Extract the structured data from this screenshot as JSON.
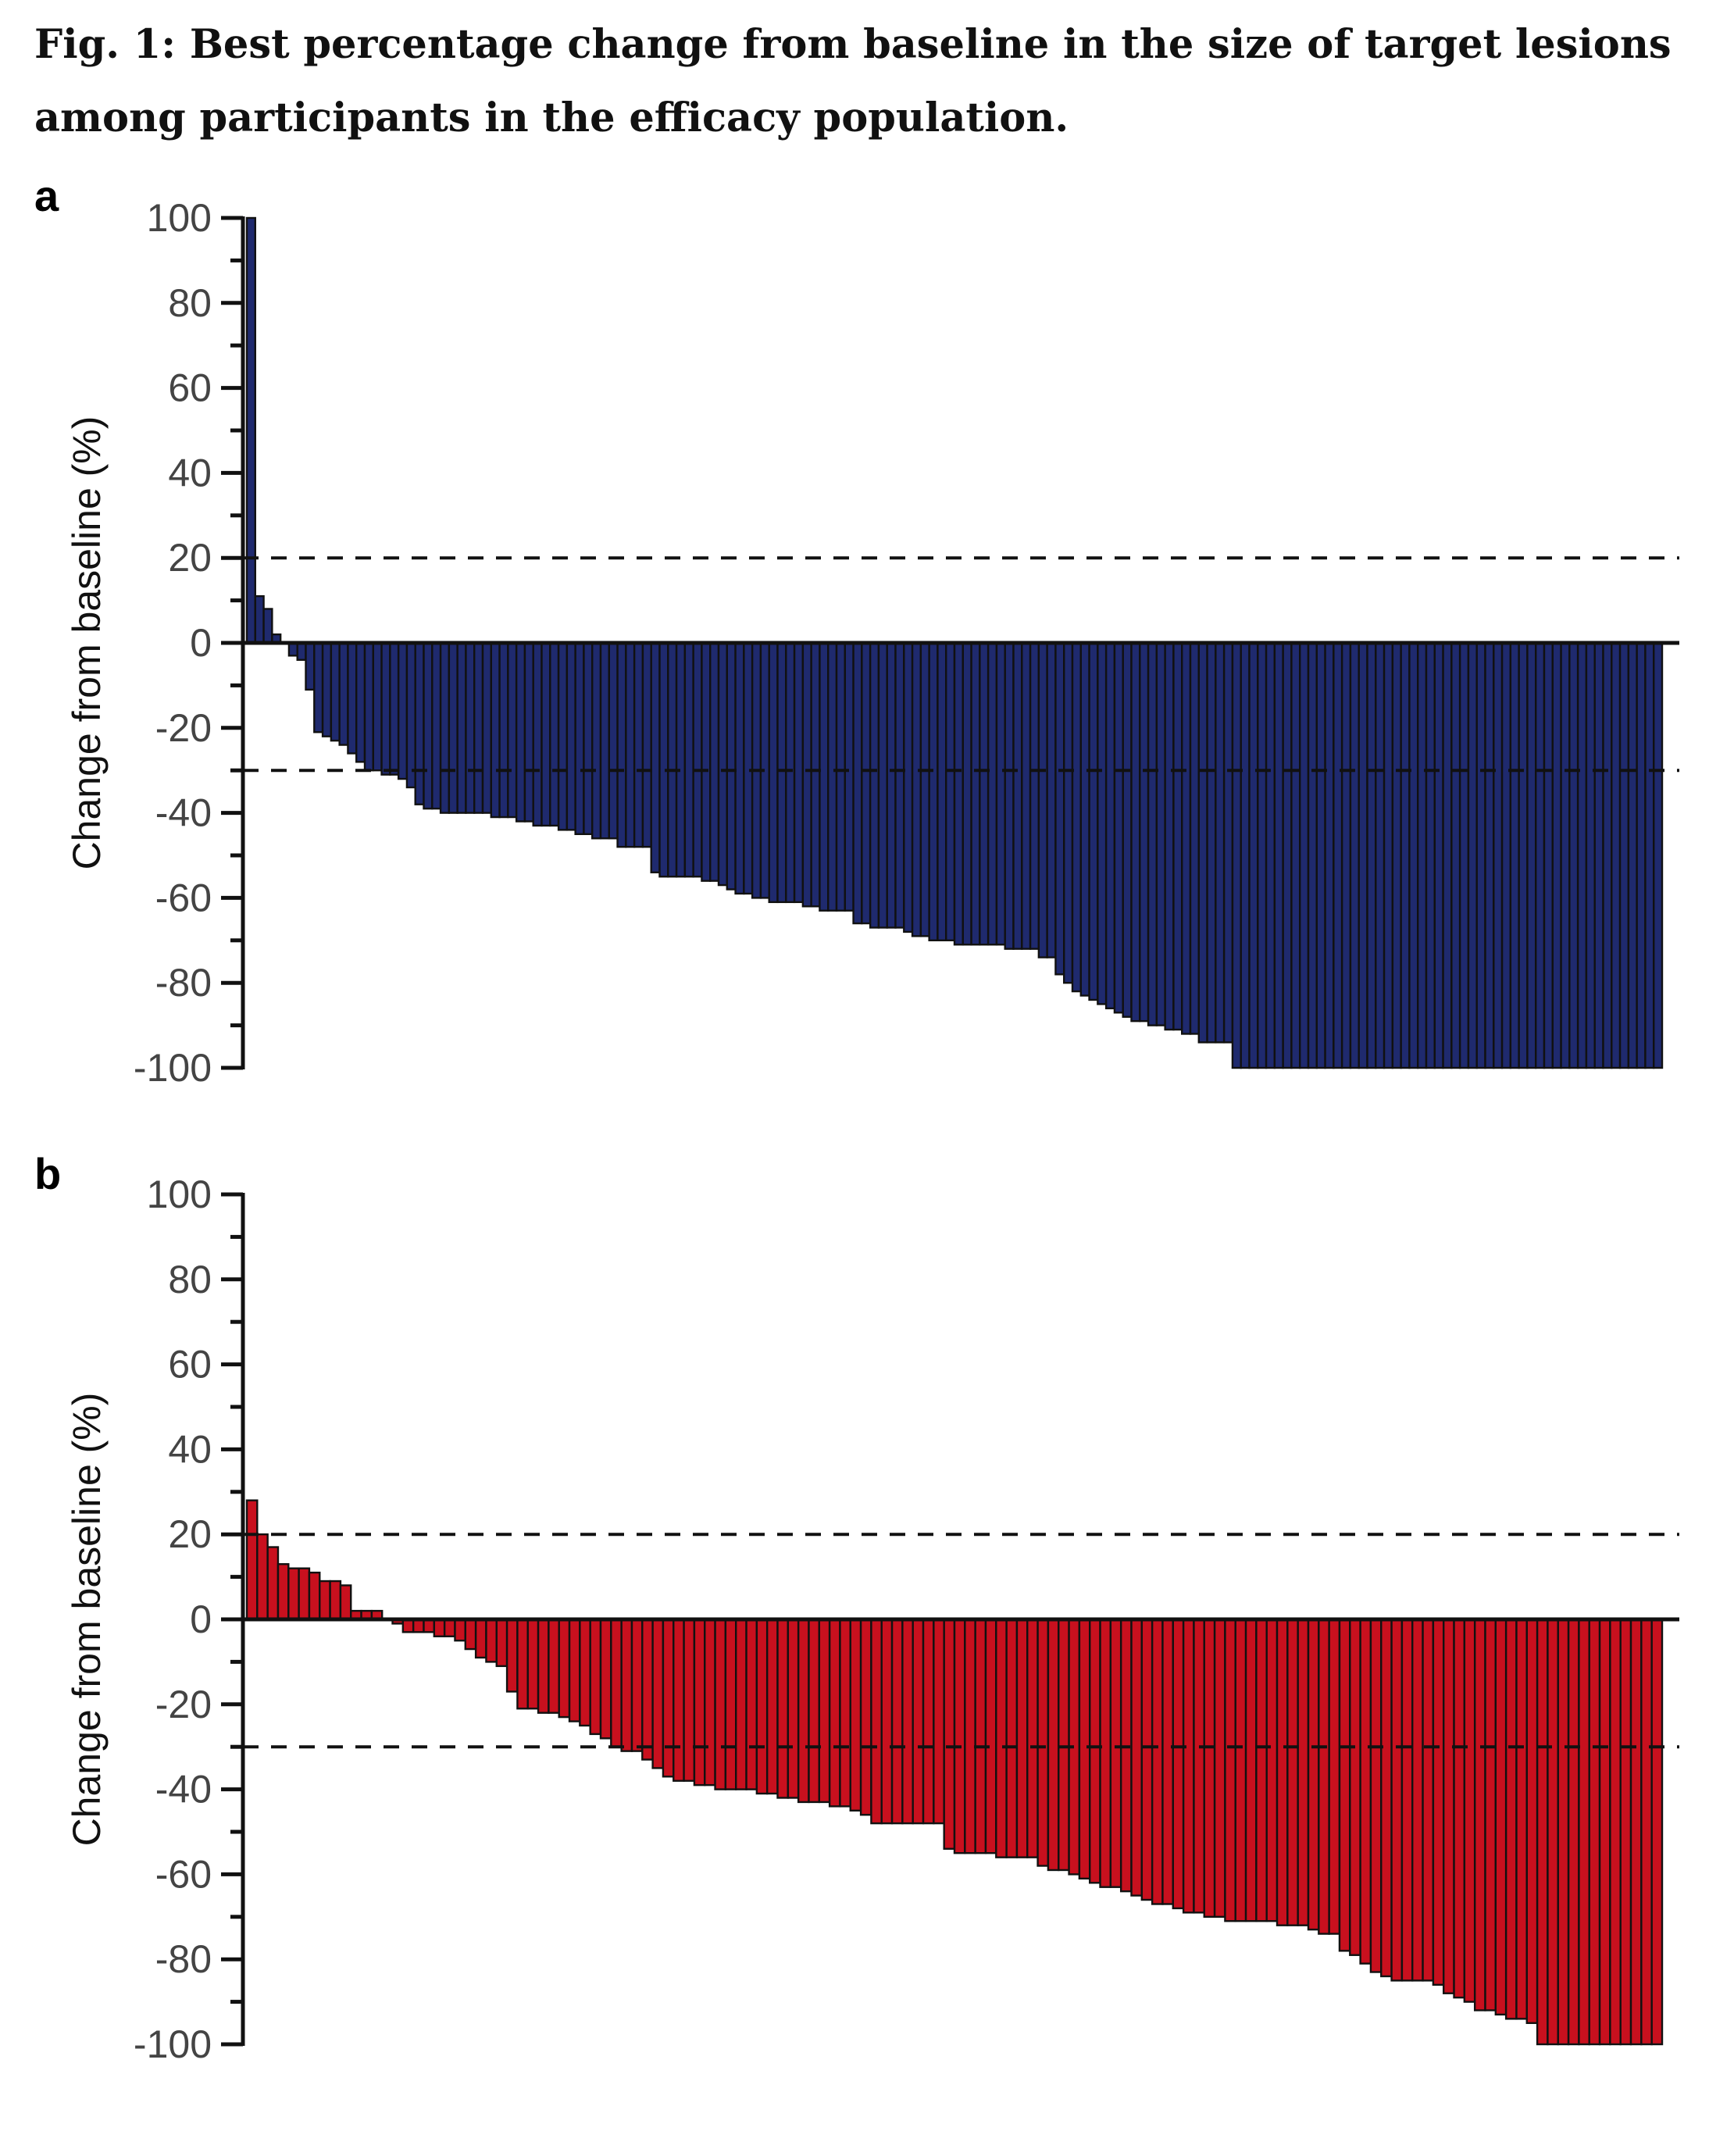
{
  "figure": {
    "title": "Fig. 1: Best percentage change from baseline in the size of target lesions among participants in the efficacy population."
  },
  "chart_data": [
    {
      "panel": "a",
      "type": "bar",
      "ylabel": "Change from baseline (%)",
      "xlabel": "",
      "ylim": [
        -100,
        100
      ],
      "yticks": [
        100,
        80,
        60,
        40,
        20,
        0,
        -20,
        -40,
        -60,
        -80,
        -100
      ],
      "reference_lines": [
        20,
        -30
      ],
      "bar_color": "#1f2a6e",
      "values": [
        100,
        11,
        8,
        2,
        0,
        -3,
        -4,
        -11,
        -21,
        -22,
        -23,
        -24,
        -26,
        -28,
        -30,
        -30,
        -31,
        -31,
        -32,
        -34,
        -38,
        -39,
        -39,
        -40,
        -40,
        -40,
        -40,
        -40,
        -40,
        -41,
        -41,
        -41,
        -42,
        -42,
        -43,
        -43,
        -43,
        -44,
        -44,
        -45,
        -45,
        -46,
        -46,
        -46,
        -48,
        -48,
        -48,
        -48,
        -54,
        -55,
        -55,
        -55,
        -55,
        -55,
        -56,
        -56,
        -57,
        -58,
        -59,
        -59,
        -60,
        -60,
        -61,
        -61,
        -61,
        -61,
        -62,
        -62,
        -63,
        -63,
        -63,
        -63,
        -66,
        -66,
        -67,
        -67,
        -67,
        -67,
        -68,
        -69,
        -69,
        -70,
        -70,
        -70,
        -71,
        -71,
        -71,
        -71,
        -71,
        -71,
        -72,
        -72,
        -72,
        -72,
        -74,
        -74,
        -78,
        -80,
        -82,
        -83,
        -84,
        -85,
        -86,
        -87,
        -88,
        -89,
        -89,
        -90,
        -90,
        -91,
        -91,
        -92,
        -92,
        -94,
        -94,
        -94,
        -94,
        -100,
        -100,
        -100,
        -100,
        -100,
        -100,
        -100,
        -100,
        -100,
        -100,
        -100,
        -100,
        -100,
        -100,
        -100,
        -100,
        -100,
        -100,
        -100,
        -100,
        -100,
        -100,
        -100,
        -100,
        -100,
        -100,
        -100,
        -100,
        -100,
        -100,
        -100,
        -100,
        -100,
        -100,
        -100,
        -100,
        -100,
        -100,
        -100,
        -100,
        -100,
        -100,
        -100,
        -100,
        -100,
        -100,
        -100,
        -100,
        -100,
        -100,
        -100
      ]
    },
    {
      "panel": "b",
      "type": "bar",
      "ylabel": "Change from baseline (%)",
      "xlabel": "",
      "ylim": [
        -100,
        100
      ],
      "yticks": [
        100,
        80,
        60,
        40,
        20,
        0,
        -20,
        -40,
        -60,
        -80,
        -100
      ],
      "reference_lines": [
        20,
        -30
      ],
      "bar_color": "#c8101e",
      "values": [
        28,
        20,
        17,
        13,
        12,
        12,
        11,
        9,
        9,
        8,
        2,
        2,
        2,
        0,
        -1,
        -3,
        -3,
        -3,
        -4,
        -4,
        -5,
        -7,
        -9,
        -10,
        -11,
        -17,
        -21,
        -21,
        -22,
        -22,
        -23,
        -24,
        -25,
        -27,
        -28,
        -30,
        -31,
        -31,
        -33,
        -35,
        -37,
        -38,
        -38,
        -39,
        -39,
        -40,
        -40,
        -40,
        -40,
        -41,
        -41,
        -42,
        -42,
        -43,
        -43,
        -43,
        -44,
        -44,
        -45,
        -46,
        -48,
        -48,
        -48,
        -48,
        -48,
        -48,
        -48,
        -54,
        -55,
        -55,
        -55,
        -55,
        -56,
        -56,
        -56,
        -56,
        -58,
        -59,
        -59,
        -60,
        -61,
        -62,
        -63,
        -63,
        -64,
        -65,
        -66,
        -67,
        -67,
        -68,
        -69,
        -69,
        -70,
        -70,
        -71,
        -71,
        -71,
        -71,
        -71,
        -72,
        -72,
        -72,
        -73,
        -74,
        -74,
        -78,
        -79,
        -81,
        -83,
        -84,
        -85,
        -85,
        -85,
        -85,
        -86,
        -88,
        -89,
        -90,
        -92,
        -92,
        -93,
        -94,
        -94,
        -95,
        -100,
        -100,
        -100,
        -100,
        -100,
        -100,
        -100,
        -100,
        -100,
        -100,
        -100,
        -100
      ]
    }
  ]
}
